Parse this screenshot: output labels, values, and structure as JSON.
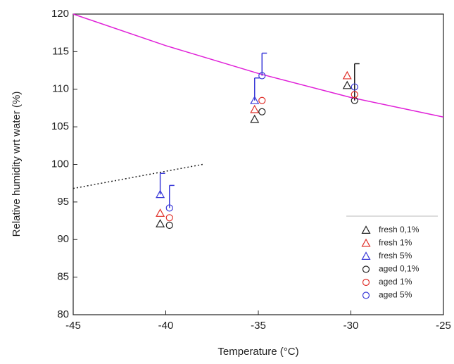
{
  "chart_data": {
    "type": "scatter",
    "xlabel": "Temperature (°C)",
    "ylabel": "Relative humidity wrt water (%)",
    "xlim": [
      -45,
      -25
    ],
    "xticks": [
      -45,
      -40,
      -35,
      -30,
      -25
    ],
    "ylim": [
      80,
      120
    ],
    "yticks": [
      80,
      85,
      90,
      95,
      100,
      105,
      110,
      115,
      120
    ],
    "legend": "lower right",
    "series": [
      {
        "name": "fresh 0,1%",
        "color": "#222222",
        "marker": "triangle",
        "x": [
          -40.3,
          -35.2,
          -30.2
        ],
        "values": [
          92.1,
          106,
          110.5
        ],
        "errors": [
          null,
          null,
          null
        ]
      },
      {
        "name": "fresh 1%",
        "color": "#e0302a",
        "marker": "triangle",
        "x": [
          -40.3,
          -35.2,
          -30.2
        ],
        "values": [
          93.5,
          107.3,
          111.8
        ],
        "errors": [
          null,
          null,
          null
        ]
      },
      {
        "name": "fresh 5%",
        "color": "#3a3ad8",
        "marker": "triangle",
        "x": [
          -40.3,
          -35.2,
          -30.2
        ],
        "values": [
          96,
          108.5,
          null
        ],
        "errors": [
          2.8,
          3,
          null
        ]
      },
      {
        "name": "aged 0,1%",
        "color": "#222222",
        "marker": "circle",
        "x": [
          -39.8,
          -34.8,
          -29.8
        ],
        "values": [
          91.9,
          107,
          108.5
        ],
        "errors": [
          null,
          null,
          4.9
        ]
      },
      {
        "name": "aged 1%",
        "color": "#e0302a",
        "marker": "circle",
        "x": [
          -39.8,
          -34.8,
          -29.8
        ],
        "values": [
          92.9,
          108.5,
          109.3
        ],
        "errors": [
          null,
          null,
          null
        ]
      },
      {
        "name": "aged 5%",
        "color": "#3a3ad8",
        "marker": "circle",
        "x": [
          -39.8,
          -34.8,
          -29.8
        ],
        "values": [
          94.2,
          111.8,
          110.3
        ],
        "errors": [
          3,
          3,
          null
        ]
      }
    ],
    "lines": [
      {
        "color": "#e020d8",
        "style": "solid",
        "x": [
          -45,
          -40,
          -35,
          -30,
          -25
        ],
        "values": [
          120,
          115.8,
          112.1,
          108.9,
          106.3
        ]
      },
      {
        "color": "#222222",
        "style": "dotted",
        "x": [
          -45,
          -38
        ],
        "values": [
          96.8,
          100
        ]
      }
    ]
  }
}
